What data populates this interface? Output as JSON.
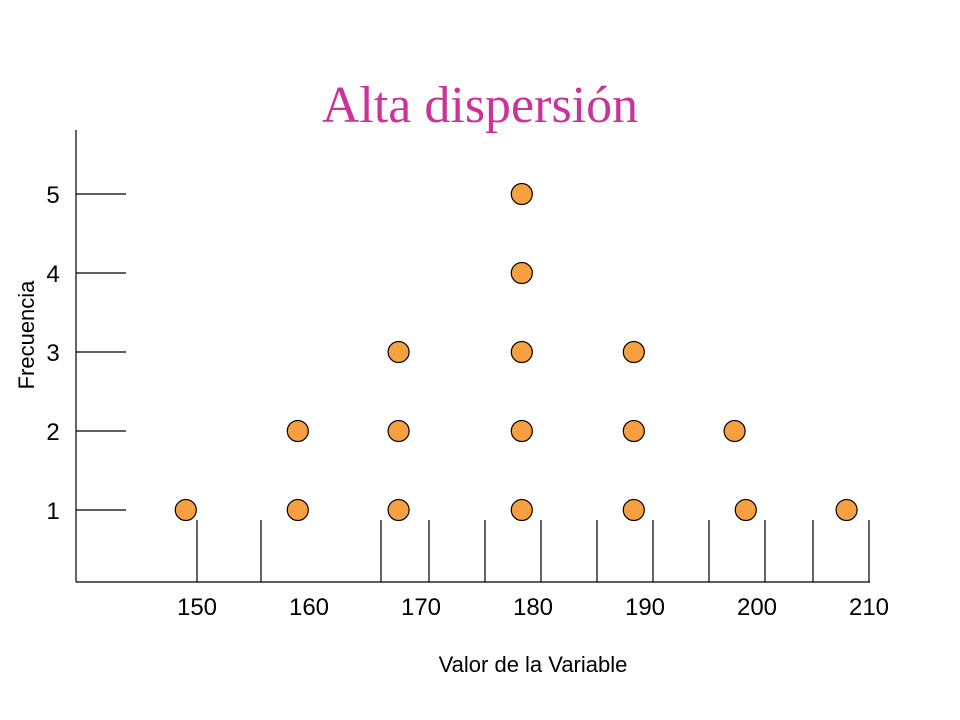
{
  "chart_data": {
    "type": "scatter",
    "title": "Alta dispersión",
    "xlabel": "Valor de la Variable",
    "ylabel": "Frecuencia",
    "x_ticks": [
      150,
      160,
      170,
      180,
      190,
      200,
      210
    ],
    "y_ticks": [
      1,
      2,
      3,
      4,
      5
    ],
    "xlim": [
      140,
      213
    ],
    "ylim": [
      0,
      6
    ],
    "grid": false,
    "legend": "none",
    "marker_color": "#f7a040",
    "title_color": "#cc3399",
    "points": [
      {
        "x": 149,
        "y": 1
      },
      {
        "x": 159,
        "y": 1
      },
      {
        "x": 159,
        "y": 2
      },
      {
        "x": 168,
        "y": 1
      },
      {
        "x": 168,
        "y": 2
      },
      {
        "x": 168,
        "y": 3
      },
      {
        "x": 179,
        "y": 1
      },
      {
        "x": 179,
        "y": 2
      },
      {
        "x": 179,
        "y": 3
      },
      {
        "x": 179,
        "y": 4
      },
      {
        "x": 179,
        "y": 5
      },
      {
        "x": 189,
        "y": 1
      },
      {
        "x": 189,
        "y": 2
      },
      {
        "x": 189,
        "y": 3
      },
      {
        "x": 198,
        "y": 2
      },
      {
        "x": 199,
        "y": 1
      },
      {
        "x": 208,
        "y": 1
      }
    ]
  }
}
